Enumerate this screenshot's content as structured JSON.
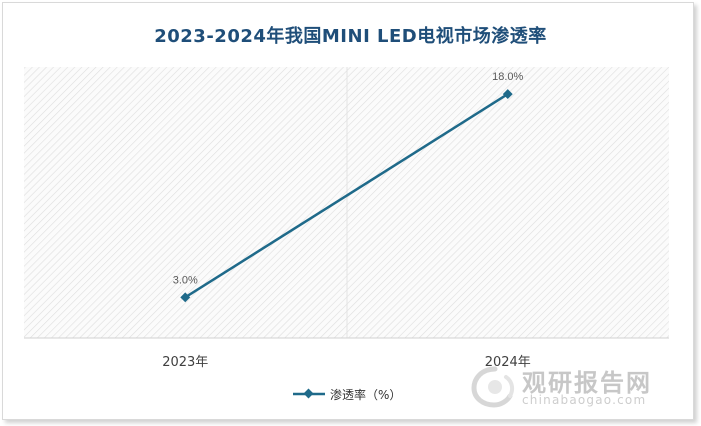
{
  "chart_data": {
    "type": "line",
    "title": "2023-2024年我国MINI LED电视市场渗透率",
    "categories": [
      "2023年",
      "2024年"
    ],
    "series": [
      {
        "name": "渗透率（%）",
        "values": [
          3.0,
          18.0
        ],
        "labels": [
          "3.0%",
          "18.0%"
        ],
        "color": "#1f6a8a"
      }
    ],
    "ylim": [
      0,
      20
    ],
    "grid": true,
    "legend_position": "bottom",
    "plot_background": "hatched"
  },
  "watermark": {
    "name": "观研报告网",
    "url": "chinabaogao.com"
  }
}
